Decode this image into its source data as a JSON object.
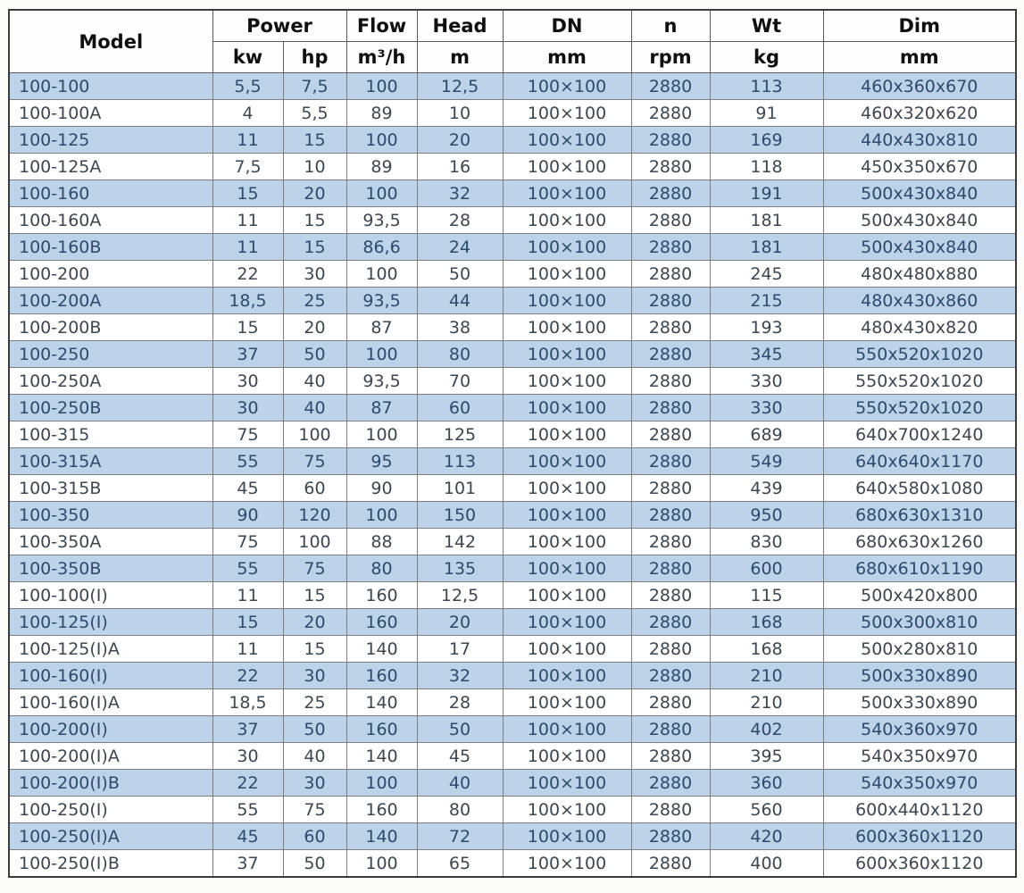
{
  "table": {
    "header": {
      "model": "Model",
      "power": {
        "label": "Power",
        "units": [
          "kw",
          "hp"
        ]
      },
      "flow": {
        "label": "Flow",
        "unit": "m³/h"
      },
      "head": {
        "label": "Head",
        "unit": "m"
      },
      "dn": {
        "label": "DN",
        "unit": "mm"
      },
      "n": {
        "label": "n",
        "unit": "rpm"
      },
      "wt": {
        "label": "Wt",
        "unit": "kg"
      },
      "dim": {
        "label": "Dim",
        "unit": "mm"
      }
    },
    "rows": [
      [
        "100-100",
        "5,5",
        "7,5",
        "100",
        "12,5",
        "100×100",
        "2880",
        "113",
        "460x360x670"
      ],
      [
        "100-100A",
        "4",
        "5,5",
        "89",
        "10",
        "100×100",
        "2880",
        "91",
        "460x320x620"
      ],
      [
        "100-125",
        "11",
        "15",
        "100",
        "20",
        "100×100",
        "2880",
        "169",
        "440x430x810"
      ],
      [
        "100-125A",
        "7,5",
        "10",
        "89",
        "16",
        "100×100",
        "2880",
        "118",
        "450x350x670"
      ],
      [
        "100-160",
        "15",
        "20",
        "100",
        "32",
        "100×100",
        "2880",
        "191",
        "500x430x840"
      ],
      [
        "100-160A",
        "11",
        "15",
        "93,5",
        "28",
        "100×100",
        "2880",
        "181",
        "500x430x840"
      ],
      [
        "100-160B",
        "11",
        "15",
        "86,6",
        "24",
        "100×100",
        "2880",
        "181",
        "500x430x840"
      ],
      [
        "100-200",
        "22",
        "30",
        "100",
        "50",
        "100×100",
        "2880",
        "245",
        "480x480x880"
      ],
      [
        "100-200A",
        "18,5",
        "25",
        "93,5",
        "44",
        "100×100",
        "2880",
        "215",
        "480x430x860"
      ],
      [
        "100-200B",
        "15",
        "20",
        "87",
        "38",
        "100×100",
        "2880",
        "193",
        "480x430x820"
      ],
      [
        "100-250",
        "37",
        "50",
        "100",
        "80",
        "100×100",
        "2880",
        "345",
        "550x520x1020"
      ],
      [
        "100-250A",
        "30",
        "40",
        "93,5",
        "70",
        "100×100",
        "2880",
        "330",
        "550x520x1020"
      ],
      [
        "100-250B",
        "30",
        "40",
        "87",
        "60",
        "100×100",
        "2880",
        "330",
        "550x520x1020"
      ],
      [
        "100-315",
        "75",
        "100",
        "100",
        "125",
        "100×100",
        "2880",
        "689",
        "640x700x1240"
      ],
      [
        "100-315A",
        "55",
        "75",
        "95",
        "113",
        "100×100",
        "2880",
        "549",
        "640x640x1170"
      ],
      [
        "100-315B",
        "45",
        "60",
        "90",
        "101",
        "100×100",
        "2880",
        "439",
        "640x580x1080"
      ],
      [
        "100-350",
        "90",
        "120",
        "100",
        "150",
        "100×100",
        "2880",
        "950",
        "680x630x1310"
      ],
      [
        "100-350A",
        "75",
        "100",
        "88",
        "142",
        "100×100",
        "2880",
        "830",
        "680x630x1260"
      ],
      [
        "100-350B",
        "55",
        "75",
        "80",
        "135",
        "100×100",
        "2880",
        "600",
        "680x610x1190"
      ],
      [
        "100-100(I)",
        "11",
        "15",
        "160",
        "12,5",
        "100×100",
        "2880",
        "115",
        "500x420x800"
      ],
      [
        "100-125(I)",
        "15",
        "20",
        "160",
        "20",
        "100×100",
        "2880",
        "168",
        "500x300x810"
      ],
      [
        "100-125(I)A",
        "11",
        "15",
        "140",
        "17",
        "100×100",
        "2880",
        "168",
        "500x280x810"
      ],
      [
        "100-160(I)",
        "22",
        "30",
        "160",
        "32",
        "100×100",
        "2880",
        "210",
        "500x330x890"
      ],
      [
        "100-160(I)A",
        "18,5",
        "25",
        "140",
        "28",
        "100×100",
        "2880",
        "210",
        "500x330x890"
      ],
      [
        "100-200(I)",
        "37",
        "50",
        "160",
        "50",
        "100×100",
        "2880",
        "402",
        "540x360x970"
      ],
      [
        "100-200(I)A",
        "30",
        "40",
        "140",
        "45",
        "100×100",
        "2880",
        "395",
        "540x350x970"
      ],
      [
        "100-200(I)B",
        "22",
        "30",
        "100",
        "40",
        "100×100",
        "2880",
        "360",
        "540x350x970"
      ],
      [
        "100-250(I)",
        "55",
        "75",
        "160",
        "80",
        "100×100",
        "2880",
        "560",
        "600x440x1120"
      ],
      [
        "100-250(I)A",
        "45",
        "60",
        "140",
        "72",
        "100×100",
        "2880",
        "420",
        "600x360x1120"
      ],
      [
        "100-250(I)B",
        "37",
        "50",
        "100",
        "65",
        "100×100",
        "2880",
        "400",
        "600x360x1120"
      ]
    ]
  },
  "colors": {
    "row_shade_bg": "#bdd3ea",
    "shaded_text": "#2d4a6b",
    "body_text": "#3e4650",
    "grid_line": "#7e7e7e",
    "outer_border": "#3c3c3c",
    "header_text": "#0f0f0f"
  }
}
